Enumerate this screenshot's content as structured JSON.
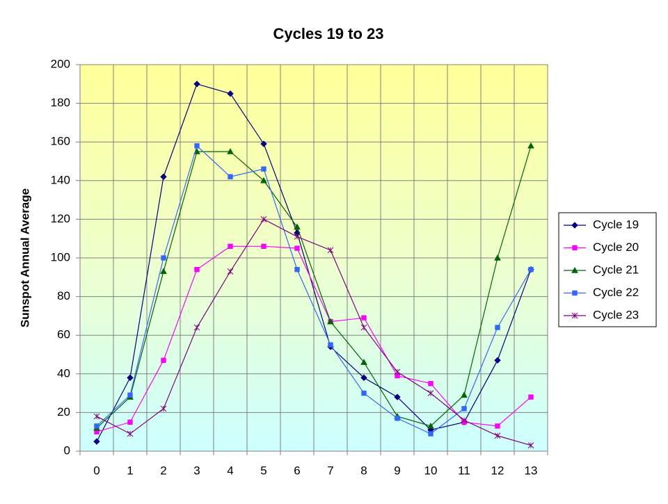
{
  "chart_data": {
    "type": "line",
    "title": "Cycles 19 to 23",
    "y_label": "Sunspot Annual Average",
    "categories": [
      "0",
      "1",
      "2",
      "3",
      "4",
      "5",
      "6",
      "7",
      "8",
      "9",
      "10",
      "11",
      "12",
      "13"
    ],
    "ylim": [
      0,
      200
    ],
    "yticks": [
      0,
      20,
      40,
      60,
      80,
      100,
      120,
      140,
      160,
      180,
      200
    ],
    "grid": true,
    "legend": "right",
    "series": [
      {
        "name": "Cycle 19",
        "color": "#000080",
        "marker": "diamond",
        "values": [
          5,
          38,
          142,
          190,
          185,
          159,
          113,
          54,
          38,
          28,
          11,
          15,
          47,
          94
        ]
      },
      {
        "name": "Cycle 20",
        "color": "#ff00ff",
        "marker": "square",
        "values": [
          10,
          15,
          47,
          94,
          106,
          106,
          105,
          67,
          69,
          39,
          35,
          15,
          13,
          28
        ]
      },
      {
        "name": "Cycle 21",
        "color": "#006400",
        "marker": "triangle",
        "values": [
          12,
          28,
          93,
          155,
          155,
          140,
          116,
          67,
          46,
          18,
          13,
          29,
          100,
          158
        ]
      },
      {
        "name": "Cycle 22",
        "color": "#3366ff",
        "marker": "square",
        "values": [
          13,
          29,
          100,
          158,
          142,
          146,
          94,
          55,
          30,
          17,
          9,
          22,
          64,
          94
        ]
      },
      {
        "name": "Cycle 23",
        "color": "#800080",
        "marker": "star",
        "values": [
          18,
          9,
          22,
          64,
          93,
          120,
          111,
          104,
          64,
          41,
          30,
          16,
          8,
          3
        ]
      }
    ]
  }
}
